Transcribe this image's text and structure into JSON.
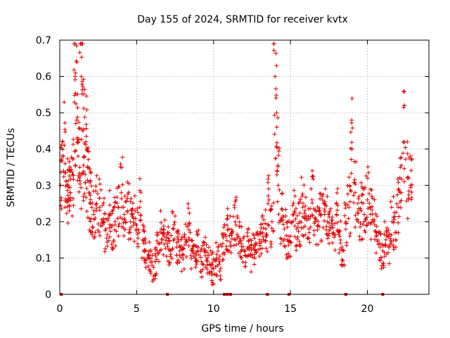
{
  "chart_data": {
    "type": "scatter",
    "title": "Day 155 of 2024, SRMTID for receiver kvtx",
    "xlabel": "GPS time / hours",
    "ylabel": "SRMTID / TECUs",
    "xlim": [
      0,
      24
    ],
    "ylim": [
      0,
      0.7
    ],
    "x_ticks": [
      0,
      5,
      10,
      15,
      20
    ],
    "x_tick_labels": [
      "0",
      "5",
      "10",
      "15",
      "20"
    ],
    "y_ticks": [
      0,
      0.1,
      0.2,
      0.3,
      0.4,
      0.5,
      0.6,
      0.7
    ],
    "y_tick_labels": [
      "0",
      "0.1",
      "0.2",
      "0.3",
      "0.4",
      "0.5",
      "0.6",
      "0.7"
    ],
    "grid": true,
    "marker": "plus",
    "color": "#e00000",
    "series": [
      {
        "name": "SRMTID",
        "x": [
          0.05,
          0.2,
          0.35,
          0.5,
          0.6,
          0.7,
          0.85,
          1.0,
          1.1,
          1.2,
          1.3,
          1.4,
          1.5,
          1.6,
          1.7,
          1.8,
          1.9,
          2.0,
          2.2,
          2.4,
          2.6,
          2.8,
          3.0,
          3.2,
          3.4,
          3.6,
          3.8,
          4.0,
          4.2,
          4.4,
          4.6,
          4.8,
          5.0,
          5.2,
          5.4,
          5.6,
          5.8,
          6.0,
          6.2,
          6.4,
          6.6,
          6.8,
          7.0,
          7.2,
          7.4,
          7.6,
          7.8,
          8.0,
          8.2,
          8.4,
          8.6,
          8.8,
          9.0,
          9.2,
          9.4,
          9.6,
          9.8,
          10.0,
          10.2,
          10.4,
          10.6,
          10.8,
          11.0,
          11.2,
          11.4,
          11.6,
          11.8,
          12.0,
          12.2,
          12.4,
          12.6,
          12.8,
          13.0,
          13.2,
          13.4,
          13.6,
          13.8,
          14.0,
          14.1,
          14.2,
          14.4,
          14.6,
          14.8,
          15.0,
          15.2,
          15.4,
          15.6,
          15.8,
          16.0,
          16.2,
          16.4,
          16.6,
          16.8,
          17.0,
          17.2,
          17.4,
          17.6,
          17.8,
          18.0,
          18.2,
          18.4,
          18.6,
          18.8,
          19.0,
          19.2,
          19.4,
          19.6,
          19.8,
          20.0,
          20.2,
          20.4,
          20.6,
          20.8,
          21.0,
          21.2,
          21.4,
          21.6,
          21.8,
          22.0,
          22.2,
          22.4,
          22.6,
          22.8
        ],
        "y": [
          0.3,
          0.42,
          0.36,
          0.3,
          0.26,
          0.28,
          0.33,
          0.6,
          0.48,
          0.42,
          0.35,
          0.6,
          0.45,
          0.38,
          0.42,
          0.35,
          0.28,
          0.25,
          0.22,
          0.25,
          0.24,
          0.2,
          0.18,
          0.22,
          0.19,
          0.2,
          0.24,
          0.28,
          0.22,
          0.23,
          0.2,
          0.21,
          0.19,
          0.24,
          0.15,
          0.12,
          0.1,
          0.08,
          0.09,
          0.14,
          0.18,
          0.16,
          0.14,
          0.12,
          0.18,
          0.13,
          0.12,
          0.11,
          0.15,
          0.19,
          0.12,
          0.1,
          0.13,
          0.09,
          0.12,
          0.1,
          0.08,
          0.07,
          0.1,
          0.09,
          0.14,
          0.16,
          0.18,
          0.17,
          0.2,
          0.16,
          0.14,
          0.12,
          0.16,
          0.11,
          0.13,
          0.14,
          0.15,
          0.17,
          0.18,
          0.26,
          0.2,
          0.6,
          0.5,
          0.3,
          0.21,
          0.18,
          0.15,
          0.16,
          0.22,
          0.18,
          0.2,
          0.24,
          0.21,
          0.18,
          0.26,
          0.2,
          0.19,
          0.22,
          0.25,
          0.2,
          0.18,
          0.17,
          0.22,
          0.16,
          0.12,
          0.2,
          0.24,
          0.4,
          0.28,
          0.2,
          0.23,
          0.22,
          0.26,
          0.22,
          0.2,
          0.17,
          0.14,
          0.12,
          0.15,
          0.13,
          0.2,
          0.17,
          0.24,
          0.28,
          0.42,
          0.32,
          0.3
        ]
      }
    ],
    "zero_markers_x": [
      0.1,
      7.0,
      10.7,
      10.9,
      11.1,
      13.5,
      14.9,
      18.6,
      21.0
    ]
  }
}
